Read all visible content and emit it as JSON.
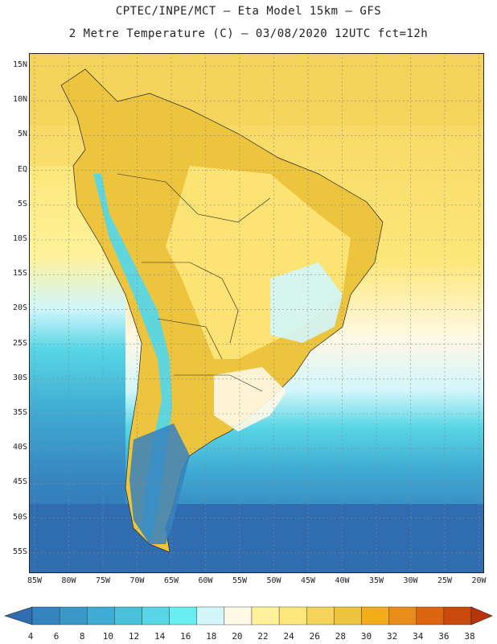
{
  "header": {
    "line1": "CPTEC/INPE/MCT –  Eta Model 15km – GFS",
    "line2": "2 Metre Temperature (C) – 03/08/2020 12UTC fct=12h"
  },
  "axes": {
    "lat_labels": [
      "15N",
      "10N",
      "5N",
      "EQ",
      "5S",
      "10S",
      "15S",
      "20S",
      "25S",
      "30S",
      "35S",
      "40S",
      "45S",
      "50S",
      "55S"
    ],
    "lon_labels": [
      "85W",
      "80W",
      "75W",
      "70W",
      "65W",
      "60W",
      "55W",
      "50W",
      "45W",
      "40W",
      "35W",
      "30W",
      "25W",
      "20W"
    ]
  },
  "colorbar": {
    "labels": [
      "4",
      "6",
      "8",
      "10",
      "12",
      "14",
      "16",
      "18",
      "20",
      "22",
      "24",
      "26",
      "28",
      "30",
      "32",
      "34",
      "36",
      "38"
    ],
    "colors": [
      "#2f6db0",
      "#3583bf",
      "#3a98c9",
      "#40acd3",
      "#4ac1db",
      "#58d6e5",
      "#66eef0",
      "#d2f6fb",
      "#fff9e6",
      "#fff29a",
      "#fde77a",
      "#f5d35a",
      "#edc43e",
      "#f3ac1a",
      "#ea8c19",
      "#dd6510",
      "#c94a0c",
      "#b8340a"
    ]
  },
  "map_regions": {
    "land_labels": []
  }
}
